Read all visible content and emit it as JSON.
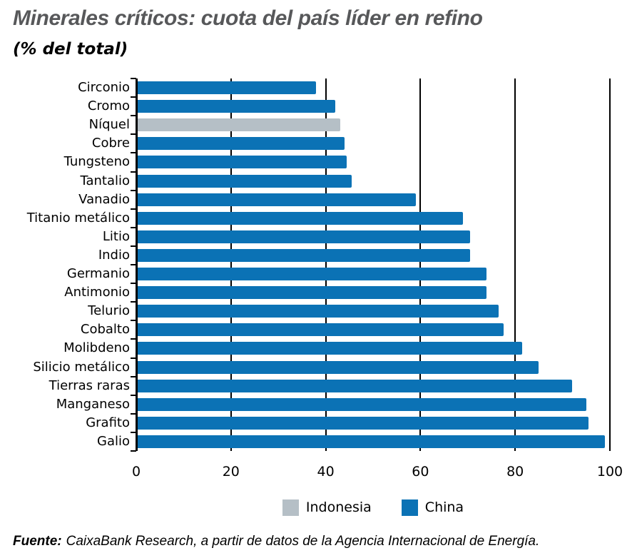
{
  "colors": {
    "china_bar": "#0b72b5",
    "indonesia_bar": "#b5bfc6",
    "title_text": "#57585a",
    "axis_and_text": "#000000"
  },
  "footer": {
    "prefix": "Fuente:",
    "text": "CaixaBank Research, a partir de datos de la Agencia Internacional de Energía."
  },
  "chart_data": {
    "type": "bar",
    "orientation": "horizontal",
    "title": "Minerales críticos: cuota del país líder en refino",
    "subtitle": "(% del total)",
    "xlabel": "",
    "ylabel": "",
    "xlim": [
      0,
      100
    ],
    "xticks": [
      0,
      20,
      40,
      60,
      80,
      100
    ],
    "grid": true,
    "legend_position": "bottom-center",
    "legend": [
      {
        "name": "Indonesia",
        "color": "#b5bfc6"
      },
      {
        "name": "China",
        "color": "#0b72b5"
      }
    ],
    "items": [
      {
        "label": "Circonio",
        "value": 38,
        "series": "China"
      },
      {
        "label": "Cromo",
        "value": 42,
        "series": "China"
      },
      {
        "label": "Níquel",
        "value": 43,
        "series": "Indonesia"
      },
      {
        "label": "Cobre",
        "value": 44,
        "series": "China"
      },
      {
        "label": "Tungsteno",
        "value": 44.5,
        "series": "China"
      },
      {
        "label": "Tantalio",
        "value": 45.5,
        "series": "China"
      },
      {
        "label": "Vanadio",
        "value": 59,
        "series": "China"
      },
      {
        "label": "Titanio metálico",
        "value": 69,
        "series": "China"
      },
      {
        "label": "Litio",
        "value": 70.5,
        "series": "China"
      },
      {
        "label": "Indio",
        "value": 70.5,
        "series": "China"
      },
      {
        "label": "Germanio",
        "value": 74,
        "series": "China"
      },
      {
        "label": "Antimonio",
        "value": 74,
        "series": "China"
      },
      {
        "label": "Telurio",
        "value": 76.5,
        "series": "China"
      },
      {
        "label": "Cobalto",
        "value": 77.5,
        "series": "China"
      },
      {
        "label": "Molibdeno",
        "value": 81.5,
        "series": "China"
      },
      {
        "label": "Silicio metálico",
        "value": 85,
        "series": "China"
      },
      {
        "label": "Tierras raras",
        "value": 92,
        "series": "China"
      },
      {
        "label": "Manganeso",
        "value": 95,
        "series": "China"
      },
      {
        "label": "Grafito",
        "value": 95.5,
        "series": "China"
      },
      {
        "label": "Galio",
        "value": 99,
        "series": "China"
      }
    ]
  }
}
